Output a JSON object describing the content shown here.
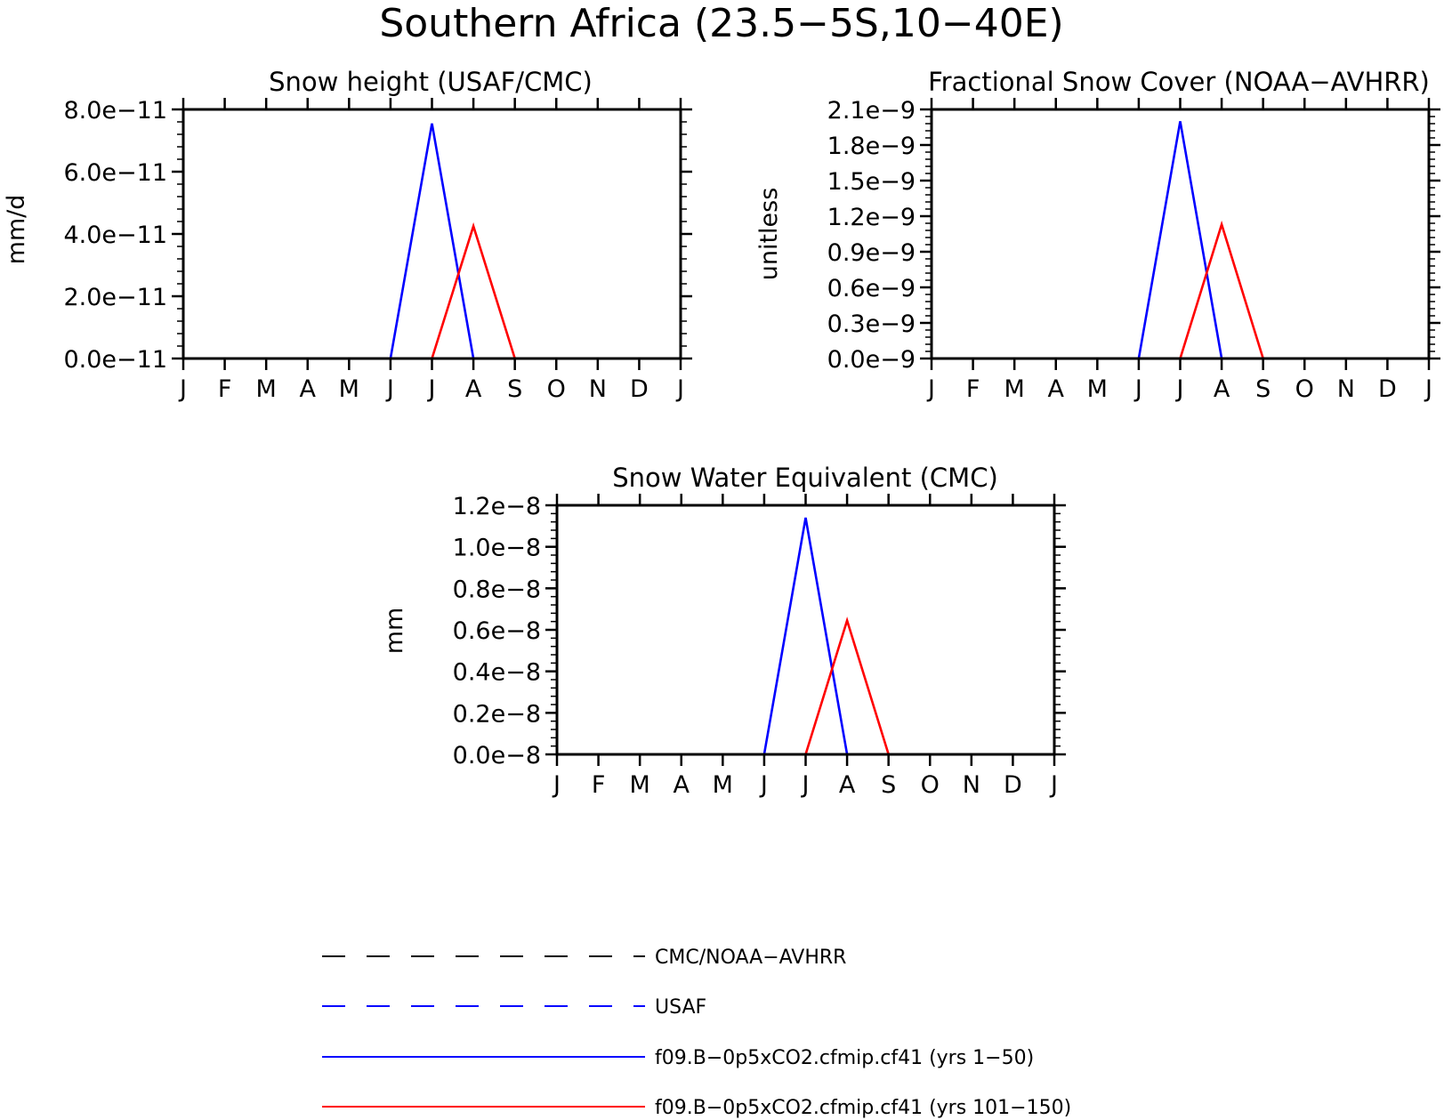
{
  "title": "Southern Africa (23.5−5S,10−40E)",
  "months": [
    "J",
    "F",
    "M",
    "A",
    "M",
    "J",
    "J",
    "A",
    "S",
    "O",
    "N",
    "D",
    "J"
  ],
  "colors": {
    "obs": "#000000",
    "usaf": "#0000ff",
    "run1": "#0000ff",
    "run2": "#ff0000"
  },
  "chart_data": [
    {
      "type": "line",
      "title": "Snow height (USAF/CMC)",
      "ylabel": "mm/d",
      "ylim": [
        0,
        8e-11
      ],
      "yticks": [
        0,
        2e-11,
        4e-11,
        6e-11,
        8e-11
      ],
      "yticklabels": [
        "0.0e−11",
        "2.0e−11",
        "4.0e−11",
        "6.0e−11",
        "8.0e−11"
      ],
      "x": [
        "Jan",
        "Feb",
        "Mar",
        "Apr",
        "May",
        "Jun",
        "Jul",
        "Aug",
        "Sep",
        "Oct",
        "Nov",
        "Dec",
        "Jan"
      ],
      "series": [
        {
          "name": "f09.B−0p5xCO2.cfmip.cf41 (yrs 1−50)",
          "color": "#0000ff",
          "values": [
            0,
            0,
            0,
            0,
            0,
            0,
            7.55e-11,
            0,
            0,
            0,
            0,
            0,
            0
          ]
        },
        {
          "name": "f09.B−0p5xCO2.cfmip.cf41 (yrs 101−150)",
          "color": "#ff0000",
          "values": [
            0,
            0,
            0,
            0,
            0,
            0,
            0,
            4.25e-11,
            0,
            0,
            0,
            0,
            0
          ]
        }
      ]
    },
    {
      "type": "line",
      "title": "Fractional Snow Cover (NOAA−AVHRR)",
      "ylabel": "unitless",
      "ylim": [
        0,
        2.1e-09
      ],
      "yticks": [
        0,
        3e-10,
        6e-10,
        9e-10,
        1.2e-09,
        1.5e-09,
        1.8e-09,
        2.1e-09
      ],
      "yticklabels": [
        "0.0e−9",
        "0.3e−9",
        "0.6e−9",
        "0.9e−9",
        "1.2e−9",
        "1.5e−9",
        "1.8e−9",
        "2.1e−9"
      ],
      "x": [
        "Jan",
        "Feb",
        "Mar",
        "Apr",
        "May",
        "Jun",
        "Jul",
        "Aug",
        "Sep",
        "Oct",
        "Nov",
        "Dec",
        "Jan"
      ],
      "series": [
        {
          "name": "f09.B−0p5xCO2.cfmip.cf41 (yrs 1−50)",
          "color": "#0000ff",
          "values": [
            0,
            0,
            0,
            0,
            0,
            0,
            2e-09,
            0,
            0,
            0,
            0,
            0,
            0
          ]
        },
        {
          "name": "f09.B−0p5xCO2.cfmip.cf41 (yrs 101−150)",
          "color": "#ff0000",
          "values": [
            0,
            0,
            0,
            0,
            0,
            0,
            0,
            1.13e-09,
            0,
            0,
            0,
            0,
            0
          ]
        }
      ]
    },
    {
      "type": "line",
      "title": "Snow Water Equivalent (CMC)",
      "ylabel": "mm",
      "ylim": [
        0,
        1.2e-08
      ],
      "yticks": [
        0,
        2e-09,
        4e-09,
        6e-09,
        8e-09,
        1e-08,
        1.2e-08
      ],
      "yticklabels": [
        "0.0e−8",
        "0.2e−8",
        "0.4e−8",
        "0.6e−8",
        "0.8e−8",
        "1.0e−8",
        "1.2e−8"
      ],
      "x": [
        "Jan",
        "Feb",
        "Mar",
        "Apr",
        "May",
        "Jun",
        "Jul",
        "Aug",
        "Sep",
        "Oct",
        "Nov",
        "Dec",
        "Jan"
      ],
      "series": [
        {
          "name": "f09.B−0p5xCO2.cfmip.cf41 (yrs 1−50)",
          "color": "#0000ff",
          "values": [
            0,
            0,
            0,
            0,
            0,
            0,
            1.14e-08,
            0,
            0,
            0,
            0,
            0,
            0
          ]
        },
        {
          "name": "f09.B−0p5xCO2.cfmip.cf41 (yrs 101−150)",
          "color": "#ff0000",
          "values": [
            0,
            0,
            0,
            0,
            0,
            0,
            0,
            6.45e-09,
            0,
            0,
            0,
            0,
            0
          ]
        }
      ]
    }
  ],
  "legend": [
    {
      "label": "CMC/NOAA−AVHRR",
      "style": "dashed",
      "color": "#000000"
    },
    {
      "label": "USAF",
      "style": "dashed",
      "color": "#0000ff"
    },
    {
      "label": "f09.B−0p5xCO2.cfmip.cf41 (yrs 1−50)",
      "style": "solid",
      "color": "#0000ff"
    },
    {
      "label": "f09.B−0p5xCO2.cfmip.cf41 (yrs 101−150)",
      "style": "solid",
      "color": "#ff0000"
    }
  ]
}
